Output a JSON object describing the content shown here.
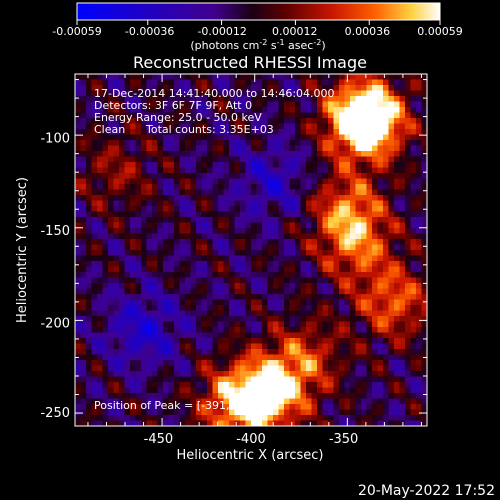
{
  "colorbar": {
    "tick_labels": [
      "-0.00059",
      "-0.00036",
      "-0.00012",
      "0.00012",
      "0.00036",
      "0.00059"
    ],
    "tick_values": [
      -0.00059,
      -0.00036,
      -0.00012,
      0.00012,
      0.00036,
      0.00059
    ],
    "range": [
      -0.00059,
      0.00059
    ],
    "unit_label": "(photons cm",
    "unit_exp1": "-2",
    "unit_mid": " s",
    "unit_exp2": "-1",
    "unit_end": " asec",
    "unit_exp3": "-2",
    "unit_close": ")",
    "colors": [
      "#0000ff",
      "#1a00c8",
      "#3a0098",
      "#1a0010",
      "#5a0000",
      "#c01000",
      "#ff5000",
      "#ffc020",
      "#ffffff"
    ]
  },
  "chart_data": {
    "type": "heatmap",
    "title": "Reconstructed RHESSI Image",
    "xlabel": "Heliocentric X (arcsec)",
    "ylabel": "Heliocentric Y (arcsec)",
    "xlim": [
      -497,
      -307
    ],
    "ylim": [
      -257,
      -67
    ],
    "x_ticks": [
      -450,
      -400,
      -350
    ],
    "x_tick_labels": [
      "-450",
      "-400",
      "-350"
    ],
    "y_ticks": [
      -100,
      -150,
      -200,
      -250
    ],
    "y_tick_labels": [
      "-100",
      "-150",
      "-200",
      "-250"
    ],
    "grid": false,
    "sources": [
      {
        "x": -340,
        "y": -90,
        "value": 0.00059
      },
      {
        "x": -341,
        "y": -94,
        "value": 0.00045
      },
      {
        "x": -350,
        "y": -140,
        "value": 0.0004
      },
      {
        "x": -345,
        "y": -160,
        "value": 0.00035
      },
      {
        "x": -325,
        "y": -190,
        "value": 0.0004
      },
      {
        "x": -391,
        "y": -238,
        "value": 0.00059
      },
      {
        "x": -410,
        "y": -245,
        "value": 0.0005
      },
      {
        "x": -372,
        "y": -220,
        "value": 0.0003
      },
      {
        "x": -475,
        "y": -120,
        "value": 0.0002
      },
      {
        "x": -390,
        "y": -125,
        "value": -0.00025
      },
      {
        "x": -460,
        "y": -205,
        "value": -0.0003
      }
    ],
    "annotations": {
      "line1": "17-Dec-2014 14:41:40.000 to 14:46:04.000",
      "line2": "Detectors: 3F 6F 7F 9F, Att 0",
      "line3": "Energy Range: 25.0 - 50.0 keV",
      "line4a": "Clean",
      "line4b": "Total counts: 3.35E+03",
      "peak": "Position of Peak = [-391,-238]"
    }
  },
  "footer": {
    "timestamp": "20-May-2022 17:52"
  }
}
